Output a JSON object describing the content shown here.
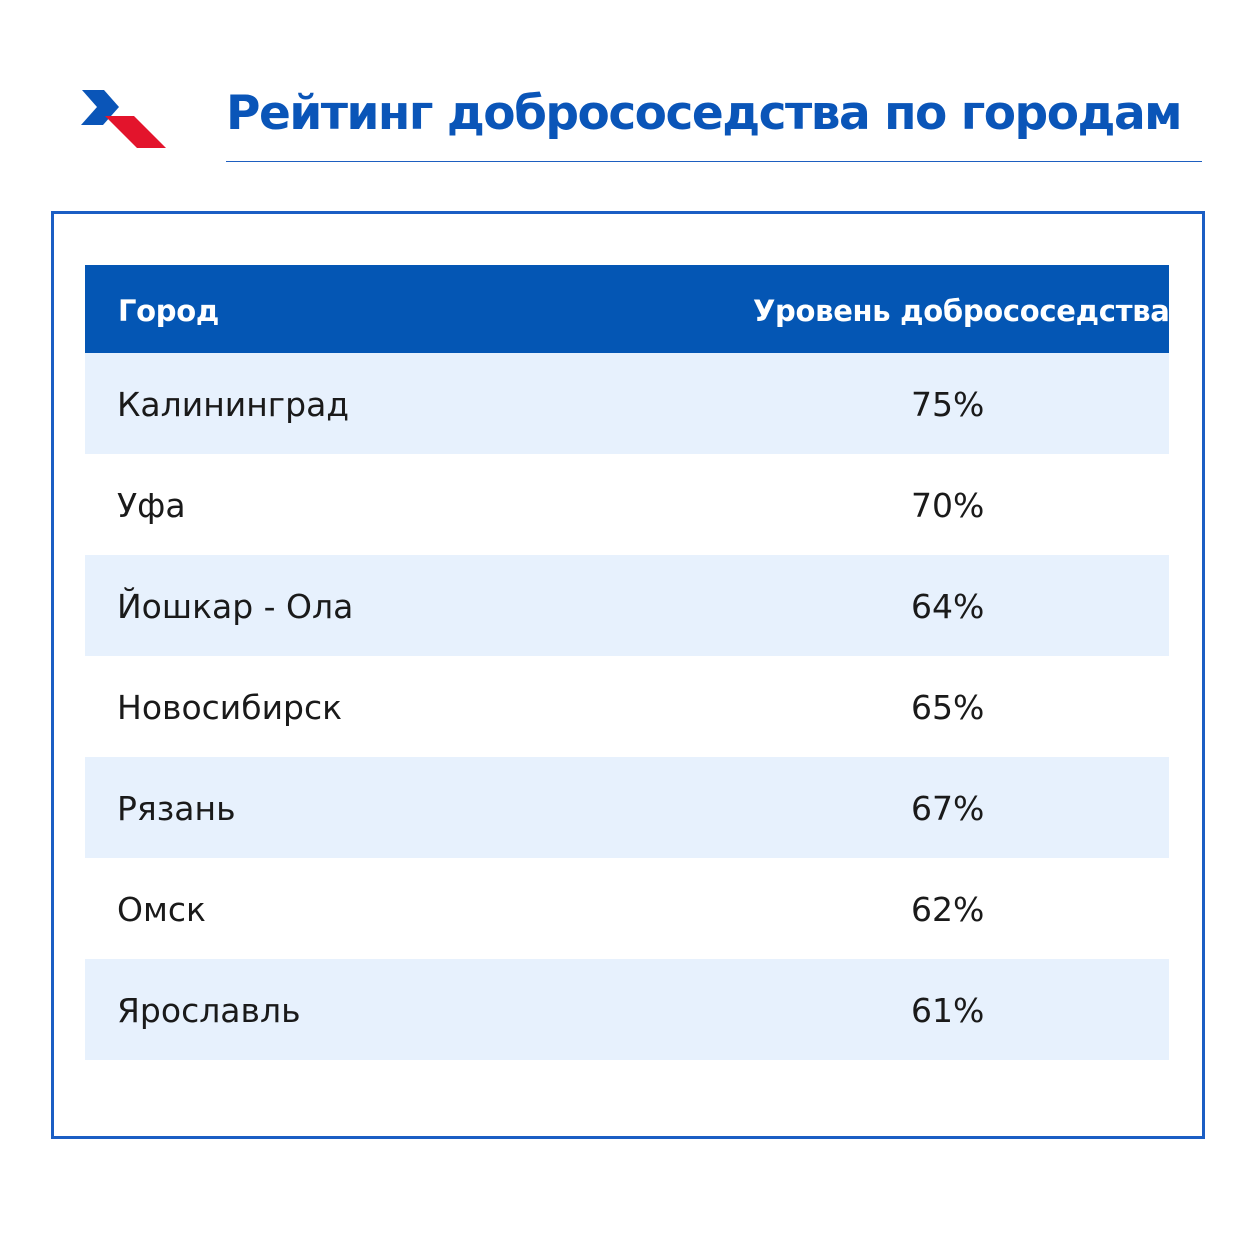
{
  "header": {
    "title": "Рейтинг добрососедства по городам",
    "logo_icon": "chevron-flag-logo-icon"
  },
  "colors": {
    "brand_blue": "#0a55b8",
    "header_row": "#0456b4",
    "stripe": "#e7f1fd",
    "accent_red": "#e3142c"
  },
  "table": {
    "columns": [
      "Город",
      "Уровень добрососедства"
    ],
    "rows": [
      {
        "city": "Калининград",
        "value": "75%"
      },
      {
        "city": "Уфа",
        "value": "70%"
      },
      {
        "city": "Йошкар - Ола",
        "value": "64%"
      },
      {
        "city": "Новосибирск",
        "value": "65%"
      },
      {
        "city": "Рязань",
        "value": "67%"
      },
      {
        "city": "Омск",
        "value": "62%"
      },
      {
        "city": "Ярославль",
        "value": "61%"
      }
    ]
  }
}
